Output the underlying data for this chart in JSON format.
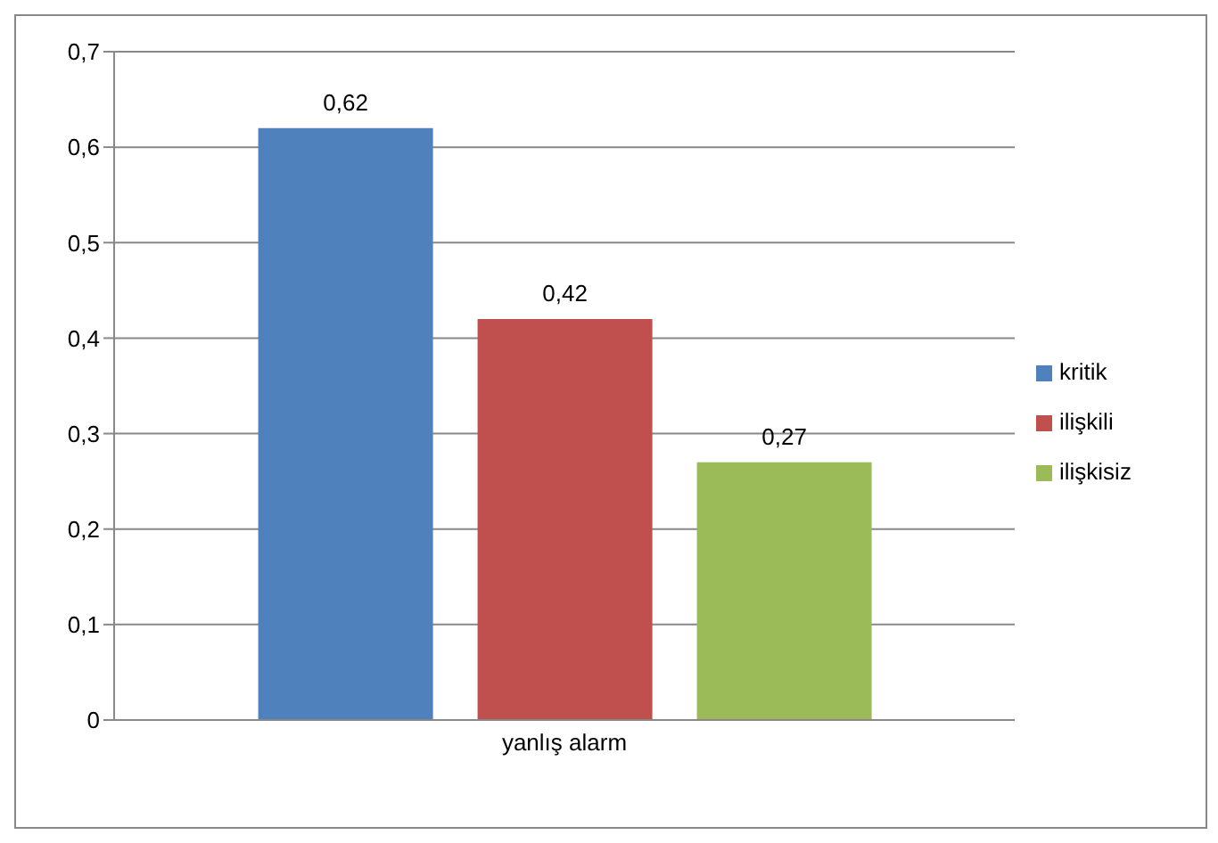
{
  "chart_data": {
    "type": "bar",
    "categories": [
      "yanlış alarm"
    ],
    "series": [
      {
        "name": "kritik",
        "color": "#4f81bd",
        "values": [
          0.62
        ],
        "value_labels": [
          "0,62"
        ]
      },
      {
        "name": "ilişkili",
        "color": "#c0504d",
        "values": [
          0.42
        ],
        "value_labels": [
          "0,42"
        ]
      },
      {
        "name": "ilişkisiz",
        "color": "#9bbb59",
        "values": [
          0.27
        ],
        "value_labels": [
          "0,27"
        ]
      }
    ],
    "ylim": [
      0,
      0.7
    ],
    "yticks": [
      {
        "value": 0,
        "label": "0"
      },
      {
        "value": 0.1,
        "label": "0,1"
      },
      {
        "value": 0.2,
        "label": "0,2"
      },
      {
        "value": 0.3,
        "label": "0,3"
      },
      {
        "value": 0.4,
        "label": "0,4"
      },
      {
        "value": 0.5,
        "label": "0,5"
      },
      {
        "value": 0.6,
        "label": "0,6"
      },
      {
        "value": 0.7,
        "label": "0,7"
      }
    ],
    "grid": "y",
    "legend": "right"
  }
}
